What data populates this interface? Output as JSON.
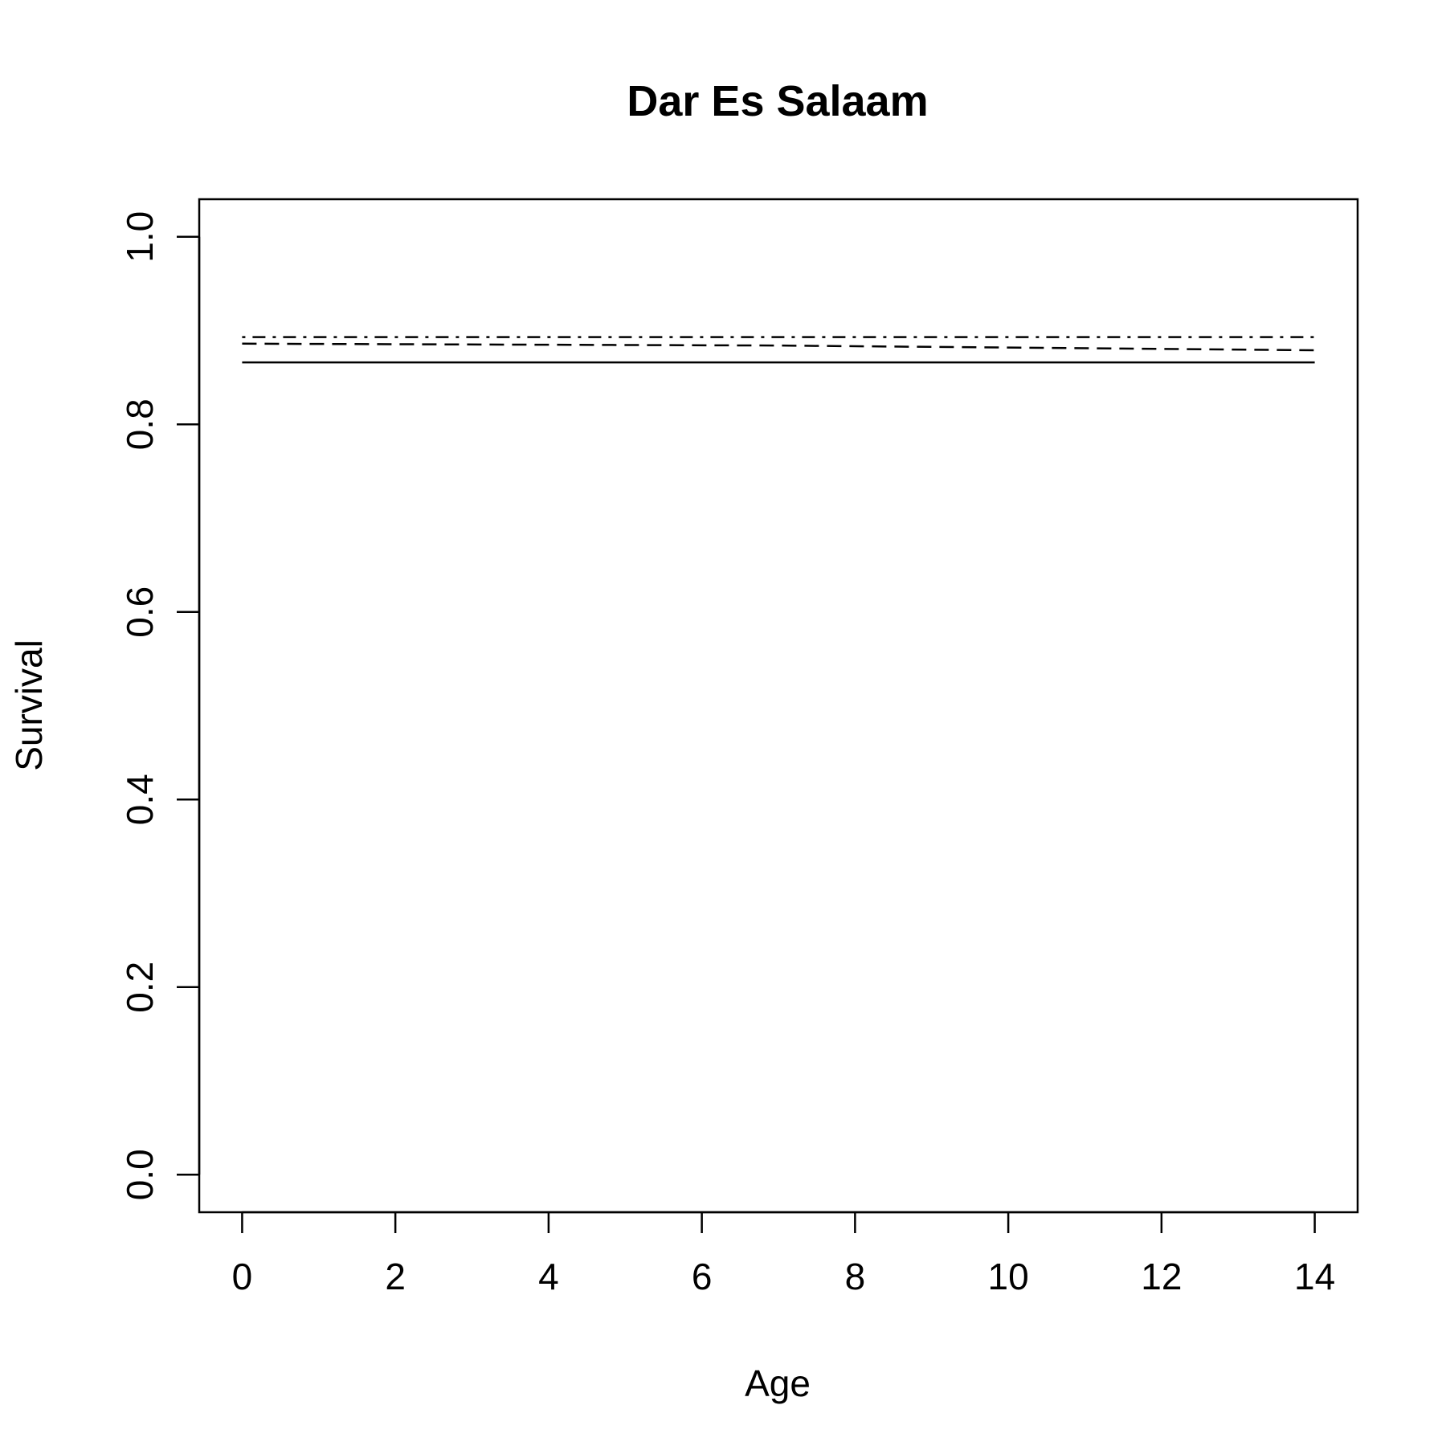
{
  "chart_data": {
    "type": "line",
    "title": "Dar Es Salaam",
    "xlabel": "Age",
    "ylabel": "Survival",
    "xlim": [
      -0.56,
      14.56
    ],
    "ylim": [
      -0.04,
      1.04
    ],
    "x_ticks": [
      "0",
      "2",
      "4",
      "6",
      "8",
      "10",
      "12",
      "14"
    ],
    "y_ticks": [
      "0.0",
      "0.2",
      "0.4",
      "0.6",
      "0.8",
      "1.0"
    ],
    "grid": false,
    "legend": "none",
    "series": [
      {
        "style": "solid",
        "color": "#000000",
        "x": [
          0,
          14
        ],
        "y": [
          0.866,
          0.866
        ]
      },
      {
        "style": "dashed",
        "color": "#000000",
        "x": [
          0,
          7,
          14
        ],
        "y": [
          0.886,
          0.884,
          0.879
        ]
      },
      {
        "style": "dotdash",
        "color": "#000000",
        "x": [
          0,
          14
        ],
        "y": [
          0.893,
          0.893
        ]
      }
    ]
  }
}
